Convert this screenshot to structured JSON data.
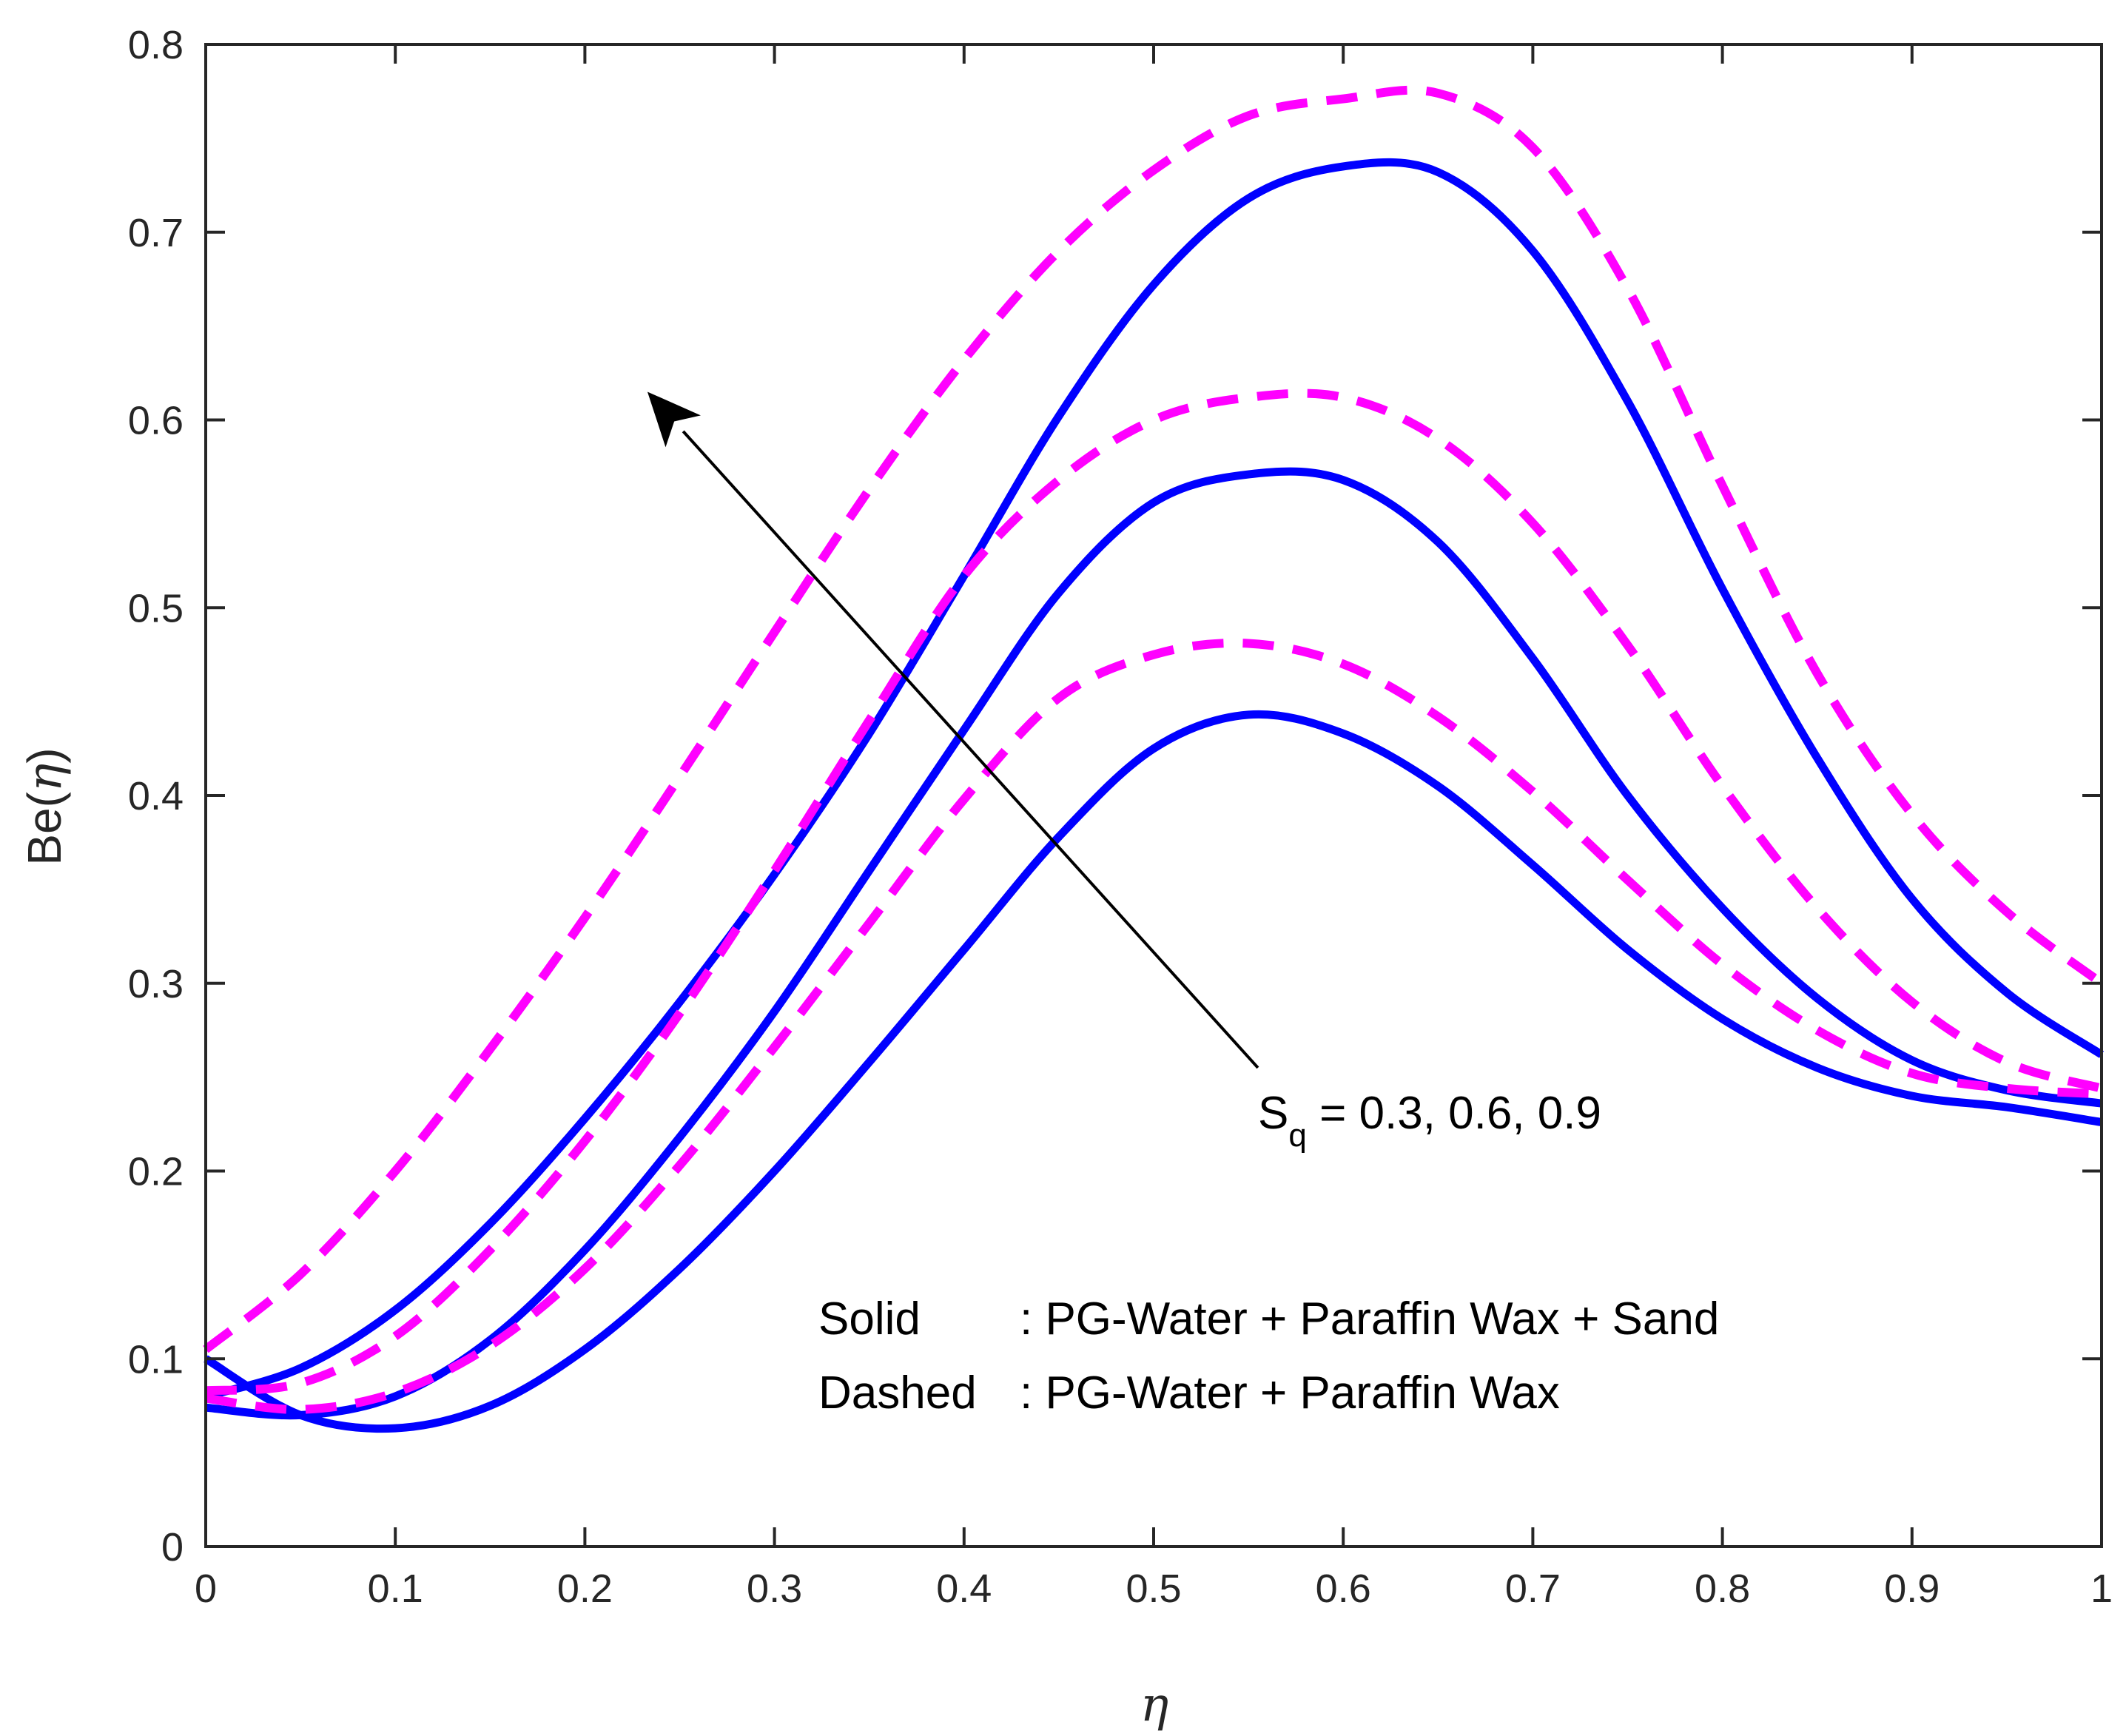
{
  "chart_data": {
    "type": "line",
    "title": "",
    "xlabel": "η",
    "ylabel_prefix": "Be(",
    "ylabel_symbol": "η",
    "ylabel_suffix": ")",
    "xlim": [
      0,
      1
    ],
    "ylim": [
      0,
      0.8
    ],
    "x_ticks": [
      0,
      0.1,
      0.2,
      0.3,
      0.4,
      0.5,
      0.6,
      0.7,
      0.8,
      0.9,
      1
    ],
    "x_tick_labels": [
      "0",
      "0.1",
      "0.2",
      "0.3",
      "0.4",
      "0.5",
      "0.6",
      "0.7",
      "0.8",
      "0.9",
      "1"
    ],
    "y_ticks": [
      0,
      0.1,
      0.2,
      0.3,
      0.4,
      0.5,
      0.6,
      0.7,
      0.8
    ],
    "y_tick_labels": [
      "0",
      "0.1",
      "0.2",
      "0.3",
      "0.4",
      "0.5",
      "0.6",
      "0.7",
      "0.8"
    ],
    "grid": false,
    "colors": {
      "solid": "#0000ff",
      "dashed": "#ff00ff",
      "axis": "#262626",
      "arrow": "#000000"
    },
    "x": [
      0,
      0.05,
      0.1,
      0.15,
      0.2,
      0.25,
      0.3,
      0.35,
      0.4,
      0.45,
      0.5,
      0.55,
      0.6,
      0.65,
      0.7,
      0.75,
      0.8,
      0.85,
      0.9,
      0.95,
      1
    ],
    "series": [
      {
        "name": "Solid, Sq = 0.3",
        "style": "solid",
        "values": [
          0.1,
          0.07,
          0.063,
          0.075,
          0.105,
          0.148,
          0.2,
          0.258,
          0.318,
          0.378,
          0.425,
          0.443,
          0.433,
          0.405,
          0.363,
          0.318,
          0.281,
          0.255,
          0.24,
          0.234,
          0.226
        ]
      },
      {
        "name": "Solid, Sq = 0.6",
        "style": "solid",
        "values": [
          0.074,
          0.07,
          0.08,
          0.11,
          0.158,
          0.218,
          0.285,
          0.36,
          0.435,
          0.508,
          0.556,
          0.571,
          0.568,
          0.535,
          0.473,
          0.4,
          0.34,
          0.292,
          0.259,
          0.243,
          0.236
        ]
      },
      {
        "name": "Solid, Sq = 0.9",
        "style": "solid",
        "values": [
          0.08,
          0.095,
          0.126,
          0.172,
          0.228,
          0.29,
          0.358,
          0.433,
          0.517,
          0.602,
          0.672,
          0.718,
          0.735,
          0.732,
          0.69,
          0.61,
          0.51,
          0.42,
          0.345,
          0.295,
          0.262
        ]
      },
      {
        "name": "Dashed, Sq = 0.3",
        "style": "dashed",
        "values": [
          0.079,
          0.073,
          0.082,
          0.107,
          0.148,
          0.203,
          0.266,
          0.332,
          0.398,
          0.452,
          0.475,
          0.481,
          0.47,
          0.442,
          0.402,
          0.355,
          0.31,
          0.275,
          0.252,
          0.244,
          0.241
        ]
      },
      {
        "name": "Dashed, Sq = 0.6",
        "style": "dashed",
        "values": [
          0.083,
          0.087,
          0.112,
          0.158,
          0.216,
          0.284,
          0.36,
          0.44,
          0.517,
          0.568,
          0.6,
          0.612,
          0.612,
          0.59,
          0.545,
          0.48,
          0.405,
          0.34,
          0.29,
          0.258,
          0.244
        ]
      },
      {
        "name": "Dashed, Sq = 0.9",
        "style": "dashed",
        "values": [
          0.105,
          0.145,
          0.2,
          0.265,
          0.335,
          0.41,
          0.487,
          0.563,
          0.632,
          0.69,
          0.733,
          0.762,
          0.771,
          0.774,
          0.745,
          0.67,
          0.565,
          0.465,
          0.39,
          0.338,
          0.3
        ]
      }
    ],
    "annotation": {
      "symbol": "S",
      "subscript": "q",
      "text": " = 0.3, 0.6, 0.9",
      "arrow_from": [
        0.555,
        0.255
      ],
      "arrow_to": [
        0.233,
        0.615
      ]
    },
    "legend_note": {
      "solid_label": "Solid",
      "solid_text": ": PG-Water + Paraffin Wax + Sand",
      "dashed_label": "Dashed",
      "dashed_text": ": PG-Water + Paraffin Wax"
    }
  }
}
